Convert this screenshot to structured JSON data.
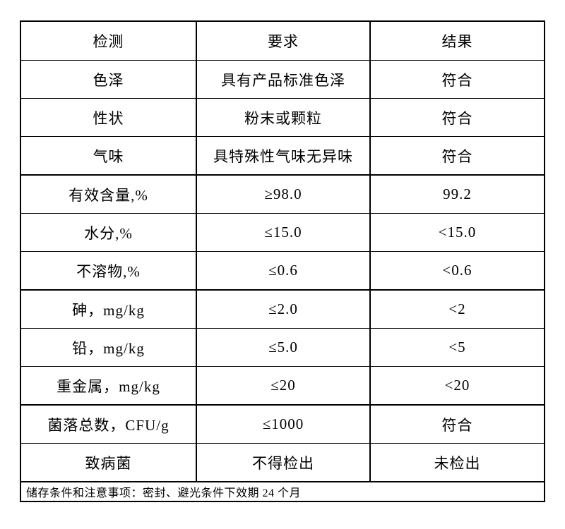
{
  "table": {
    "headers": [
      "检测",
      "要求",
      "结果"
    ],
    "rows": [
      {
        "item": "色泽",
        "requirement": "具有产品标准色泽",
        "result": "符合",
        "group_end": false
      },
      {
        "item": "性状",
        "requirement": "粉末或颗粒",
        "result": "符合",
        "group_end": false
      },
      {
        "item": "气味",
        "requirement": "具特殊性气味无异味",
        "result": "符合",
        "group_end": true
      },
      {
        "item": "有效含量,%",
        "requirement": "≥98.0",
        "result": "99.2",
        "group_end": false
      },
      {
        "item": "水分,%",
        "requirement": "≤15.0",
        "result": "<15.0",
        "group_end": false
      },
      {
        "item": "不溶物,%",
        "requirement": "≤0.6",
        "result": "<0.6",
        "group_end": true
      },
      {
        "item": "砷，mg/kg",
        "requirement": "≤2.0",
        "result": "<2",
        "group_end": false
      },
      {
        "item": "铅，mg/kg",
        "requirement": "≤5.0",
        "result": "<5",
        "group_end": false
      },
      {
        "item": "重金属，mg/kg",
        "requirement": "≤20",
        "result": "<20",
        "group_end": true
      },
      {
        "item": "菌落总数，CFU/g",
        "requirement": "≤1000",
        "result": "符合",
        "group_end": false
      },
      {
        "item": "致病菌",
        "requirement": "不得检出",
        "result": "未检出",
        "group_end": true
      }
    ],
    "footer_note": "储存条件和注意事项：密封、避光条件下效期 24 个月"
  },
  "colors": {
    "border": "#000000",
    "text": "#000000",
    "background": "#ffffff"
  }
}
